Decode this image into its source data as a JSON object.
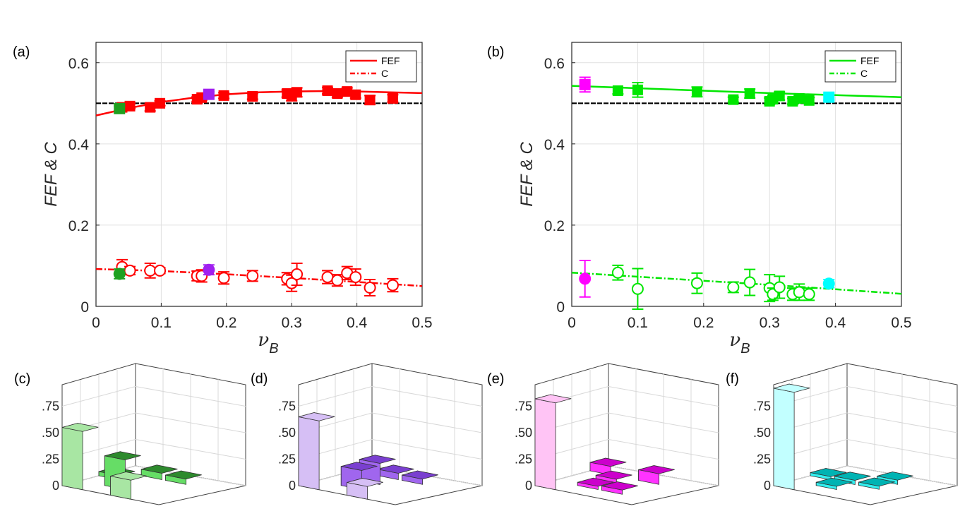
{
  "chart_data": [
    {
      "panel": "(a)",
      "type": "scatter",
      "xlabel": "ν_B",
      "ylabel": "FEF & C",
      "xlim": [
        0,
        0.5
      ],
      "ylim": [
        0,
        0.65
      ],
      "xticks": [
        "0",
        "0.1",
        "0.2",
        "0.3",
        "0.4",
        "0.5"
      ],
      "yticks": [
        "0",
        "0.2",
        "0.4",
        "0.6"
      ],
      "grid": true,
      "legend": "top-right",
      "color": "#ff0000",
      "reference_line": 0.5,
      "series": [
        {
          "name": "FEF",
          "style": "solid",
          "curve": [
            [
              0,
              0.47
            ],
            [
              0.05,
              0.488
            ],
            [
              0.1,
              0.503
            ],
            [
              0.15,
              0.514
            ],
            [
              0.2,
              0.522
            ],
            [
              0.25,
              0.527
            ],
            [
              0.3,
              0.529
            ],
            [
              0.35,
              0.53
            ],
            [
              0.4,
              0.529
            ],
            [
              0.45,
              0.527
            ],
            [
              0.5,
              0.525
            ]
          ],
          "points": [
            [
              0.04,
              0.49,
              0.005
            ],
            [
              0.052,
              0.493,
              0.006
            ],
            [
              0.083,
              0.49,
              0.009
            ],
            [
              0.098,
              0.5,
              0.006
            ],
            [
              0.155,
              0.51,
              0.006
            ],
            [
              0.162,
              0.514,
              0.007
            ],
            [
              0.196,
              0.519,
              0.007
            ],
            [
              0.24,
              0.517,
              0.007
            ],
            [
              0.293,
              0.524,
              0.009
            ],
            [
              0.3,
              0.52,
              0.014
            ],
            [
              0.308,
              0.527,
              0.011
            ],
            [
              0.355,
              0.531,
              0.008
            ],
            [
              0.37,
              0.524,
              0.009
            ],
            [
              0.385,
              0.529,
              0.009
            ],
            [
              0.398,
              0.521,
              0.008
            ],
            [
              0.42,
              0.508,
              0.011
            ],
            [
              0.455,
              0.512,
              0.009
            ]
          ]
        },
        {
          "name": "C",
          "style": "dash-dot",
          "curve": [
            [
              0,
              0.092
            ],
            [
              0.1,
              0.087
            ],
            [
              0.2,
              0.079
            ],
            [
              0.3,
              0.07
            ],
            [
              0.4,
              0.06
            ],
            [
              0.5,
              0.05
            ]
          ],
          "points": [
            [
              0.04,
              0.097,
              0.018
            ],
            [
              0.052,
              0.088,
              0.01
            ],
            [
              0.083,
              0.088,
              0.018
            ],
            [
              0.098,
              0.088,
              0.007
            ],
            [
              0.155,
              0.075,
              0.012
            ],
            [
              0.162,
              0.075,
              0.015
            ],
            [
              0.196,
              0.07,
              0.015
            ],
            [
              0.24,
              0.075,
              0.013
            ],
            [
              0.293,
              0.068,
              0.015
            ],
            [
              0.3,
              0.057,
              0.02
            ],
            [
              0.308,
              0.079,
              0.027
            ],
            [
              0.355,
              0.072,
              0.016
            ],
            [
              0.37,
              0.064,
              0.014
            ],
            [
              0.385,
              0.082,
              0.016
            ],
            [
              0.398,
              0.072,
              0.02
            ],
            [
              0.42,
              0.046,
              0.02
            ],
            [
              0.455,
              0.052,
              0.016
            ]
          ]
        }
      ],
      "highlighted": [
        {
          "x": 0.036,
          "fef": 0.487,
          "c": 0.08,
          "color": "#1fa01f"
        },
        {
          "x": 0.173,
          "fef": 0.522,
          "c": 0.09,
          "color": "#a020f0"
        }
      ]
    },
    {
      "panel": "(b)",
      "type": "scatter",
      "xlabel": "ν_B",
      "ylabel": "FEF & C",
      "xlim": [
        0,
        0.5
      ],
      "ylim": [
        0,
        0.65
      ],
      "xticks": [
        "0",
        "0.1",
        "0.2",
        "0.3",
        "0.4",
        "0.5"
      ],
      "yticks": [
        "0",
        "0.2",
        "0.4",
        "0.6"
      ],
      "grid": true,
      "legend": "top-right",
      "color": "#00e600",
      "reference_line": 0.5,
      "series": [
        {
          "name": "FEF",
          "style": "solid",
          "curve": [
            [
              0,
              0.543
            ],
            [
              0.1,
              0.537
            ],
            [
              0.2,
              0.531
            ],
            [
              0.3,
              0.525
            ],
            [
              0.4,
              0.52
            ],
            [
              0.5,
              0.515
            ]
          ],
          "points": [
            [
              0.07,
              0.531,
              0.008
            ],
            [
              0.1,
              0.533,
              0.018
            ],
            [
              0.19,
              0.528,
              0.012
            ],
            [
              0.245,
              0.509,
              0.006
            ],
            [
              0.27,
              0.524,
              0.011
            ],
            [
              0.3,
              0.505,
              0.008
            ],
            [
              0.305,
              0.51,
              0.008
            ],
            [
              0.315,
              0.518,
              0.01
            ],
            [
              0.335,
              0.505,
              0.007
            ],
            [
              0.345,
              0.512,
              0.007
            ],
            [
              0.36,
              0.507,
              0.007
            ]
          ]
        },
        {
          "name": "C",
          "style": "dash-dot",
          "curve": [
            [
              0,
              0.083
            ],
            [
              0.1,
              0.073
            ],
            [
              0.2,
              0.063
            ],
            [
              0.3,
              0.053
            ],
            [
              0.4,
              0.042
            ],
            [
              0.5,
              0.031
            ]
          ],
          "points": [
            [
              0.07,
              0.083,
              0.018
            ],
            [
              0.1,
              0.043,
              0.05
            ],
            [
              0.19,
              0.057,
              0.025
            ],
            [
              0.245,
              0.047,
              0.013
            ],
            [
              0.27,
              0.059,
              0.032
            ],
            [
              0.3,
              0.045,
              0.033
            ],
            [
              0.305,
              0.03,
              0.015
            ],
            [
              0.315,
              0.047,
              0.027
            ],
            [
              0.335,
              0.03,
              0.015
            ],
            [
              0.345,
              0.035,
              0.02
            ],
            [
              0.36,
              0.03,
              0.015
            ]
          ]
        }
      ],
      "highlighted": [
        {
          "x": 0.02,
          "fef": 0.546,
          "c": 0.068,
          "c_err": 0.045,
          "fef_err": 0.018,
          "color": "#ff00ff"
        },
        {
          "x": 0.39,
          "fef": 0.515,
          "c": 0.056,
          "c_err": 0.01,
          "fef_err": 0.007,
          "color": "#00ffff"
        }
      ]
    }
  ],
  "bar3d": [
    {
      "panel": "(c)",
      "face": "#a8e6a3",
      "side": "#2d8a2d",
      "color_top": "#66dd66",
      "yticks": [
        ".75",
        ".50",
        ".25",
        "0"
      ],
      "bars": [
        {
          "i": 0,
          "j": 0,
          "h": 0.55,
          "pale": true
        },
        {
          "i": 1,
          "j": 1,
          "h": 0.28
        },
        {
          "i": 2,
          "j": 0,
          "h": 0.18,
          "pale": true
        },
        {
          "i": 2,
          "j": 3,
          "h": 0.05
        },
        {
          "i": 1,
          "j": 3,
          "h": 0.06
        },
        {
          "i": 0,
          "j": 2,
          "h": 0.04
        }
      ]
    },
    {
      "panel": "(d)",
      "face": "#d6bff5",
      "side": "#7a3fd0",
      "color_top": "#a066ee",
      "yticks": [
        ".75",
        ".50",
        ".25",
        "0"
      ],
      "bars": [
        {
          "i": 0,
          "j": 0,
          "h": 0.65,
          "pale": true
        },
        {
          "i": 1,
          "j": 1,
          "h": 0.18
        },
        {
          "i": 1,
          "j": 2,
          "h": 0.2
        },
        {
          "i": 2,
          "j": 0,
          "h": 0.12,
          "pale": true
        },
        {
          "i": 2,
          "j": 3,
          "h": 0.05
        },
        {
          "i": 1,
          "j": 3,
          "h": 0.06
        }
      ]
    },
    {
      "panel": "(e)",
      "face": "#ffc4f5",
      "side": "#cc00cc",
      "color_top": "#ff33ff",
      "yticks": [
        ".75",
        ".50",
        ".25",
        "0"
      ],
      "bars": [
        {
          "i": 0,
          "j": 0,
          "h": 0.82,
          "pale": true
        },
        {
          "i": 0,
          "j": 3,
          "h": 0.08
        },
        {
          "i": 1,
          "j": 2,
          "h": 0.05
        },
        {
          "i": 2,
          "j": 1,
          "h": 0.04
        },
        {
          "i": 2,
          "j": 3,
          "h": 0.1
        },
        {
          "i": 1,
          "j": 1,
          "h": 0.03
        }
      ]
    },
    {
      "panel": "(f)",
      "face": "#c2ffff",
      "side": "#00b3b3",
      "color_top": "#33f0f0",
      "yticks": [
        ".75",
        ".50",
        ".25",
        "0"
      ],
      "bars": [
        {
          "i": 0,
          "j": 0,
          "h": 0.92,
          "pale": true
        },
        {
          "i": 1,
          "j": 2,
          "h": 0.04
        },
        {
          "i": 1,
          "j": 1,
          "h": 0.03
        },
        {
          "i": 2,
          "j": 2,
          "h": 0.03
        },
        {
          "i": 2,
          "j": 3,
          "h": 0.04
        },
        {
          "i": 0,
          "j": 2,
          "h": 0.03
        }
      ]
    }
  ]
}
